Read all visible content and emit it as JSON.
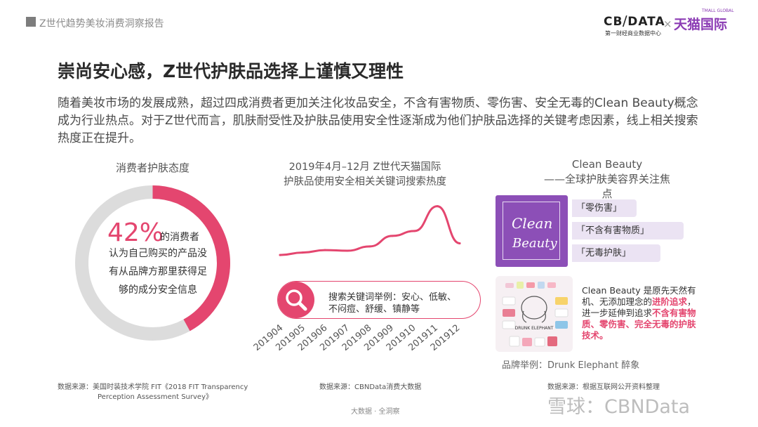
{
  "header": {
    "report_title": "Z世代趋势美妆消费洞察报告",
    "logo_cbn": "CB⧸DATA",
    "logo_cbn_sub": "第一财经商业数据中心",
    "logo_x": "×",
    "logo_tmall": "天猫国际",
    "logo_tmall_en": "TMALL GLOBAL"
  },
  "title": "崇尚安心感，Z世代护肤品选择上谨慎又理性",
  "intro": "随着美妆市场的发展成熟，超过四成消费者更加关注化妆品安全，不含有害物质、零伤害、安全无毒的Clean Beauty概念成为行业热点。对于Z世代而言，肌肤耐受性及护肤品使用安全性逐渐成为他们护肤品选择的关键考虑因素，线上相关搜索热度正在提升。",
  "section1": {
    "title": "消费者护肤态度",
    "percent_text": "42%",
    "percent_value": 0.42,
    "line1_tail": "的消费者",
    "line2": "认为自己购买的产品没",
    "line3": "有从品牌方那里获得足",
    "line4": "够的成分安全信息",
    "accent": "#e4466f",
    "track": "#dcdcdc",
    "source": "数据来源：美国时装技术学院 FIT《2018 FIT Transparency",
    "source2": "Perception Assessment Survey》"
  },
  "section2": {
    "title_line1": "2019年4月–12月 Z世代天猫国际",
    "title_line2": "护肤品使用安全相关关键词搜索热度",
    "search_icon": "search-icon",
    "search_line1": "搜索关键词举例：安心、低敏、",
    "search_line2": "不闷痘、舒缓、镇静等",
    "source": "数据来源：CBNData消费大数据"
  },
  "chart_data": {
    "type": "line",
    "x": [
      "201904",
      "201905",
      "201906",
      "201907",
      "201908",
      "201909",
      "201910",
      "201911",
      "201912"
    ],
    "series": [
      {
        "values": [
          0.18,
          0.22,
          0.26,
          0.25,
          0.32,
          0.49,
          0.57,
          0.97,
          0.37
        ]
      }
    ],
    "ylim": [
      0,
      1
    ],
    "grid": false,
    "color": "#e4466f"
  },
  "section3": {
    "title_line1": "Clean Beauty",
    "title_line2": "——全球护肤美容界关注焦点",
    "card_word1": "Clean",
    "card_word2": "Beauty",
    "tags": [
      "「零伤害」",
      "「不含有害物质」",
      "「无毒护肤」"
    ],
    "desc_part1": "Clean Beauty 是原先天然有机、无添加理念的",
    "desc_hl1": "进阶追求",
    "desc_part2": "，进一步延伸到追求",
    "desc_hl2": "不含有害物质、零伤害、完全无毒的护肤技术。",
    "brand_example": "品牌举例：Drunk Elephant 醉象",
    "brand_logo_text": "DRUNK ELEPHANT",
    "source": "数据来源：根据互联网公开资料整理",
    "purple": "#8c4fb7"
  },
  "footer": {
    "center": "大数据 · 全洞察",
    "watermark": "雪球：CBNData"
  }
}
